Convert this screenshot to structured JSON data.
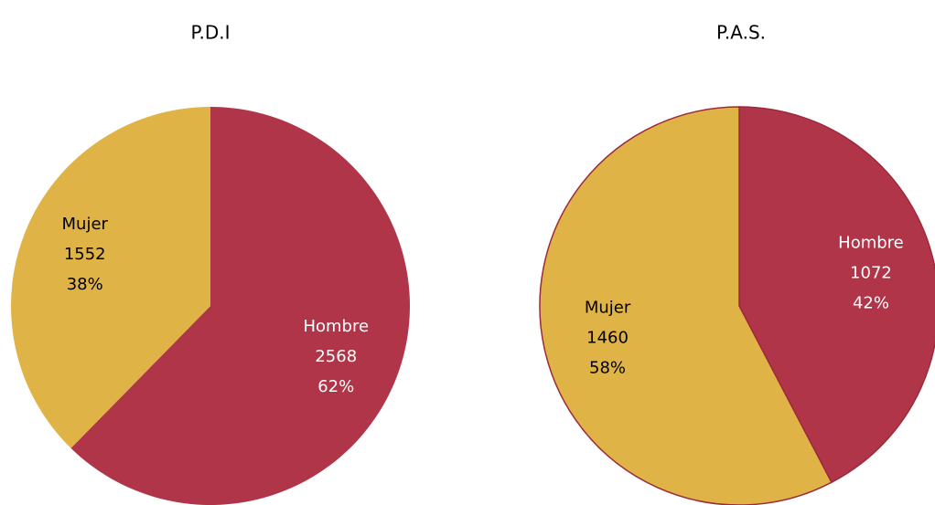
{
  "chart_data": [
    {
      "type": "pie",
      "title": "P.D.I",
      "categories": [
        "Hombre",
        "Mujer"
      ],
      "values": [
        2568,
        1552
      ],
      "percent_labels": [
        "62%",
        "38%"
      ],
      "colors": [
        "#b03548",
        "#e0b346"
      ],
      "label_colors": [
        "#ffffff",
        "#000000"
      ],
      "border": false
    },
    {
      "type": "pie",
      "title": "P.A.S.",
      "categories": [
        "Hombre",
        "Mujer"
      ],
      "values": [
        1072,
        1460
      ],
      "percent_labels": [
        "42%",
        "58%"
      ],
      "colors": [
        "#b03548",
        "#e0b346"
      ],
      "label_colors": [
        "#ffffff",
        "#000000"
      ],
      "border": true
    }
  ]
}
